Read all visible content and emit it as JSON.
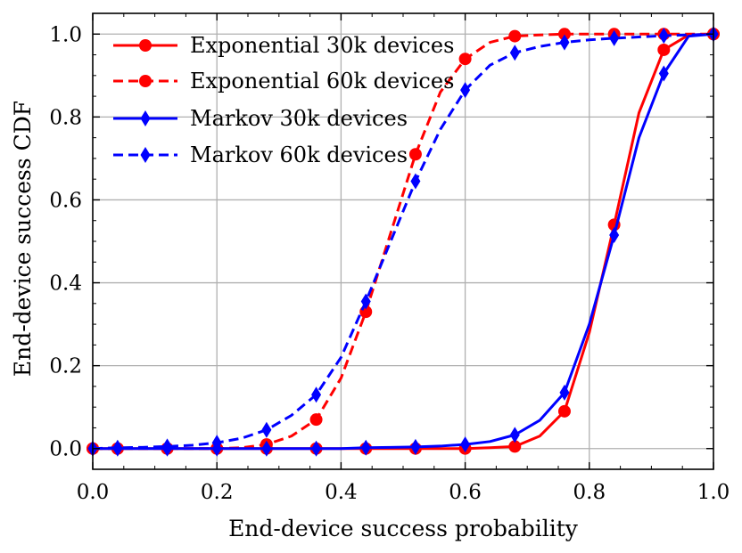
{
  "chart_data": {
    "type": "line",
    "title": "",
    "xlabel": "End-device success probability",
    "ylabel": "End-device success CDF",
    "xlim": [
      0.0,
      1.0
    ],
    "ylim": [
      -0.05,
      1.05
    ],
    "grid": true,
    "legend_position": "top-left",
    "xticks": [
      "0.0",
      "0.2",
      "0.4",
      "0.6",
      "0.8",
      "1.0"
    ],
    "yticks": [
      "0.0",
      "0.2",
      "0.4",
      "0.6",
      "0.8",
      "1.0"
    ],
    "series": [
      {
        "name": "Exponential 30k devices",
        "color": "#ff0000",
        "line_style": "solid",
        "marker": "circle",
        "x": [
          0.0,
          0.04,
          0.08,
          0.12,
          0.16,
          0.2,
          0.24,
          0.28,
          0.32,
          0.36,
          0.4,
          0.44,
          0.48,
          0.52,
          0.56,
          0.6,
          0.64,
          0.68,
          0.72,
          0.76,
          0.8,
          0.84,
          0.88,
          0.92,
          0.96,
          1.0
        ],
        "y": [
          0.0,
          0.0,
          0.0,
          0.0,
          0.0,
          0.0,
          0.0,
          0.0,
          0.0,
          0.0,
          0.0,
          0.0,
          0.0,
          0.0,
          0.0,
          0.0,
          0.002,
          0.005,
          0.03,
          0.09,
          0.28,
          0.54,
          0.81,
          0.962,
          0.998,
          1.0
        ],
        "marker_x": [
          0.0,
          0.04,
          0.12,
          0.2,
          0.28,
          0.36,
          0.44,
          0.52,
          0.6,
          0.68,
          0.76,
          0.84,
          0.92,
          1.0
        ]
      },
      {
        "name": "Exponential 60k devices",
        "color": "#ff0000",
        "line_style": "dashed",
        "marker": "circle",
        "x": [
          0.0,
          0.04,
          0.08,
          0.12,
          0.16,
          0.2,
          0.24,
          0.28,
          0.32,
          0.36,
          0.4,
          0.44,
          0.48,
          0.52,
          0.56,
          0.6,
          0.64,
          0.68,
          0.72,
          0.76,
          0.8,
          0.84,
          0.88,
          0.92,
          0.96,
          1.0
        ],
        "y": [
          0.0,
          0.0,
          0.0,
          0.0,
          0.0,
          0.0,
          0.002,
          0.01,
          0.03,
          0.07,
          0.17,
          0.33,
          0.52,
          0.71,
          0.86,
          0.94,
          0.98,
          0.995,
          0.998,
          1.0,
          1.0,
          1.0,
          1.0,
          1.0,
          1.0,
          1.0
        ],
        "marker_x": [
          0.0,
          0.04,
          0.12,
          0.2,
          0.28,
          0.36,
          0.44,
          0.52,
          0.6,
          0.68,
          0.76,
          0.84,
          0.92,
          1.0
        ]
      },
      {
        "name": "Markov 30k devices",
        "color": "#0000ff",
        "line_style": "solid",
        "marker": "diamond",
        "x": [
          0.0,
          0.04,
          0.08,
          0.12,
          0.16,
          0.2,
          0.24,
          0.28,
          0.32,
          0.36,
          0.4,
          0.44,
          0.48,
          0.52,
          0.56,
          0.6,
          0.64,
          0.68,
          0.72,
          0.76,
          0.8,
          0.84,
          0.88,
          0.92,
          0.96,
          1.0
        ],
        "y": [
          0.0,
          0.0,
          0.0,
          0.0,
          0.0,
          0.0,
          0.0,
          0.0,
          0.0,
          0.0,
          0.0,
          0.002,
          0.003,
          0.004,
          0.006,
          0.01,
          0.017,
          0.033,
          0.068,
          0.135,
          0.3,
          0.515,
          0.75,
          0.905,
          0.995,
          1.0
        ],
        "marker_x": [
          0.0,
          0.04,
          0.12,
          0.2,
          0.28,
          0.36,
          0.44,
          0.52,
          0.6,
          0.68,
          0.76,
          0.84,
          0.92,
          1.0
        ]
      },
      {
        "name": "Markov 60k devices",
        "color": "#0000ff",
        "line_style": "dashed",
        "marker": "diamond",
        "x": [
          0.0,
          0.04,
          0.08,
          0.12,
          0.16,
          0.2,
          0.24,
          0.28,
          0.32,
          0.36,
          0.4,
          0.44,
          0.48,
          0.52,
          0.56,
          0.6,
          0.64,
          0.68,
          0.72,
          0.76,
          0.8,
          0.84,
          0.88,
          0.92,
          0.96,
          1.0
        ],
        "y": [
          0.0,
          0.002,
          0.003,
          0.005,
          0.008,
          0.014,
          0.025,
          0.045,
          0.08,
          0.13,
          0.22,
          0.355,
          0.5,
          0.645,
          0.77,
          0.865,
          0.925,
          0.955,
          0.97,
          0.98,
          0.986,
          0.99,
          0.993,
          0.996,
          0.998,
          1.0
        ],
        "marker_x": [
          0.0,
          0.04,
          0.12,
          0.2,
          0.28,
          0.36,
          0.44,
          0.52,
          0.6,
          0.68,
          0.76,
          0.84,
          0.92,
          1.0
        ]
      }
    ]
  }
}
